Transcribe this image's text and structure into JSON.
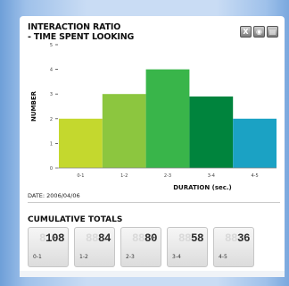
{
  "toolbar": {
    "icons": [
      "excel-export-icon",
      "view-icon",
      "print-icon"
    ],
    "glyphs": [
      "X",
      "◉",
      "▤"
    ]
  },
  "chart_data": {
    "type": "bar",
    "title": "INTERACTION RATIO\n- TIME SPENT LOOKING",
    "xlabel": "DURATION (sec.)",
    "ylabel": "NUMBER",
    "categories": [
      "0-1",
      "1-2",
      "2-3",
      "3-4",
      "4-5"
    ],
    "values": [
      2,
      3,
      4,
      2.9,
      2
    ],
    "colors": [
      "#c4d82e",
      "#8cc63f",
      "#39b54a",
      "#00843d",
      "#1ba2c4"
    ],
    "ylim": [
      0,
      5
    ],
    "yticks": [
      0,
      1,
      2,
      3,
      4,
      5
    ],
    "grid": false,
    "legend": "none"
  },
  "date_label": "DATE: 2006/04/06",
  "cumulative": {
    "title": "CUMULATIVE TOTALS",
    "totals": [
      {
        "value": "108",
        "label": "0-1"
      },
      {
        "value": "84",
        "label": "1-2"
      },
      {
        "value": "80",
        "label": "2-3"
      },
      {
        "value": "58",
        "label": "3-4"
      },
      {
        "value": "36",
        "label": "4-5"
      }
    ]
  }
}
